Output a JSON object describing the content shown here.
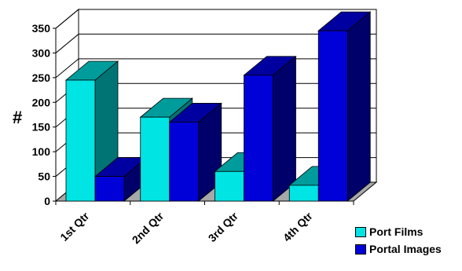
{
  "colors": {
    "series_front": [
      "#00e4e4",
      "#0000d8"
    ],
    "series_side": [
      "#007474",
      "#00006a"
    ],
    "series_top": [
      "#009c9c",
      "#0000a0"
    ],
    "floor": "#a8a8a8"
  },
  "chart_data": {
    "type": "bar",
    "style": "3d-clustered-column",
    "title": "",
    "xlabel": "",
    "ylabel": "#",
    "categories": [
      "1st Qtr",
      "2nd Qtr",
      "3rd Qtr",
      "4th Qtr"
    ],
    "series": [
      {
        "name": "Port Films",
        "values": [
          245,
          170,
          60,
          32
        ]
      },
      {
        "name": "Portal Images",
        "values": [
          50,
          160,
          255,
          345
        ]
      }
    ],
    "ylim": [
      0,
      350
    ],
    "yticks": [
      0,
      50,
      100,
      150,
      200,
      250,
      300,
      350
    ],
    "grid": true,
    "legend_position": "bottom-right"
  }
}
